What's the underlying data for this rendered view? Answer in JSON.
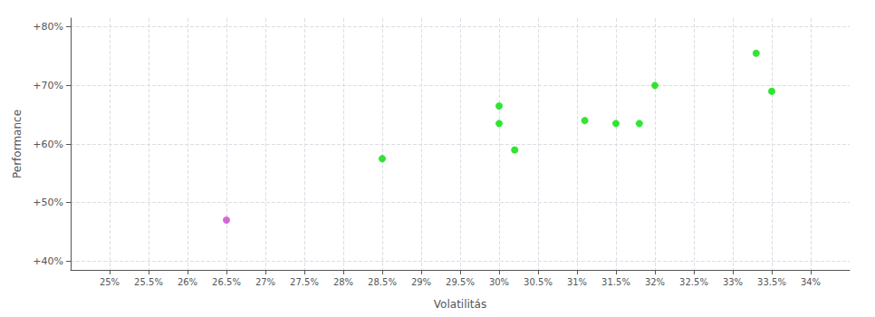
{
  "chart_data": {
    "type": "scatter",
    "xlabel": "Volatilitás",
    "ylabel": "Performance",
    "xlim": [
      0.245,
      0.345
    ],
    "ylim": [
      0.385,
      0.815
    ],
    "xticks": [
      {
        "value": 0.25,
        "label": "25%"
      },
      {
        "value": 0.255,
        "label": "25.5%"
      },
      {
        "value": 0.26,
        "label": "26%"
      },
      {
        "value": 0.265,
        "label": "26.5%"
      },
      {
        "value": 0.27,
        "label": "27%"
      },
      {
        "value": 0.275,
        "label": "27.5%"
      },
      {
        "value": 0.28,
        "label": "28%"
      },
      {
        "value": 0.285,
        "label": "28.5%"
      },
      {
        "value": 0.29,
        "label": "29%"
      },
      {
        "value": 0.295,
        "label": "29.5%"
      },
      {
        "value": 0.3,
        "label": "30%"
      },
      {
        "value": 0.305,
        "label": "30.5%"
      },
      {
        "value": 0.31,
        "label": "31%"
      },
      {
        "value": 0.315,
        "label": "31.5%"
      },
      {
        "value": 0.32,
        "label": "32%"
      },
      {
        "value": 0.325,
        "label": "32.5%"
      },
      {
        "value": 0.33,
        "label": "33%"
      },
      {
        "value": 0.335,
        "label": "33.5%"
      },
      {
        "value": 0.34,
        "label": "34%"
      }
    ],
    "yticks": [
      {
        "value": 0.4,
        "label": "+40%"
      },
      {
        "value": 0.5,
        "label": "+50%"
      },
      {
        "value": 0.6,
        "label": "+60%"
      },
      {
        "value": 0.7,
        "label": "+70%"
      },
      {
        "value": 0.8,
        "label": "+80%"
      }
    ],
    "grid": true,
    "series": [
      {
        "color": "#00dd00",
        "x": [
          0.285,
          0.3,
          0.3,
          0.302,
          0.311,
          0.315,
          0.318,
          0.32,
          0.333,
          0.335
        ],
        "values": [
          0.575,
          0.665,
          0.635,
          0.59,
          0.64,
          0.635,
          0.635,
          0.7,
          0.755,
          0.69
        ]
      },
      {
        "color": "#cc44cc",
        "x": [
          0.265
        ],
        "values": [
          0.47
        ]
      }
    ]
  }
}
